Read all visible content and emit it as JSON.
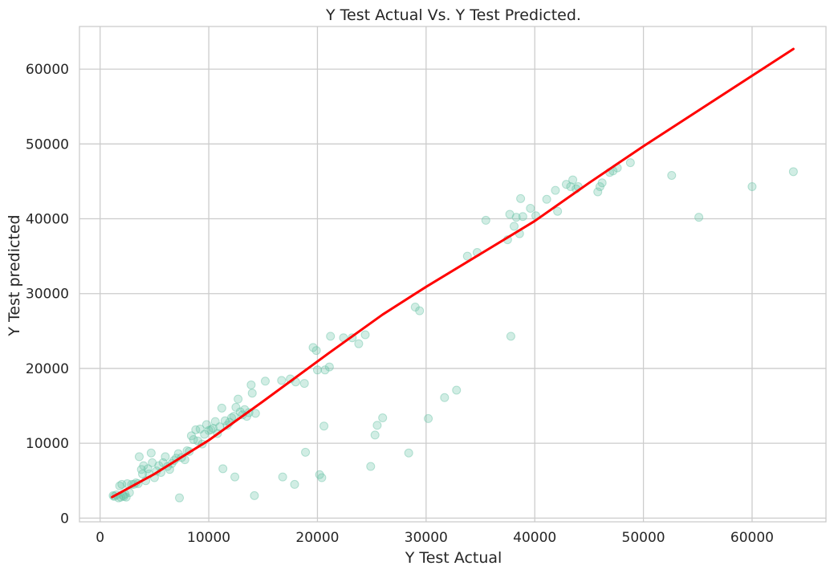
{
  "chart_data": {
    "type": "scatter",
    "title": "Y Test Actual Vs. Y Test Predicted.",
    "xlabel": "Y Test Actual",
    "ylabel": "Y Test predicted",
    "xlim": [
      -1900,
      66800
    ],
    "ylim": [
      -500,
      65700
    ],
    "xticks": [
      0,
      10000,
      20000,
      30000,
      40000,
      50000,
      60000
    ],
    "yticks": [
      0,
      10000,
      20000,
      30000,
      40000,
      50000,
      60000
    ],
    "xtick_labels": [
      "0",
      "10000",
      "20000",
      "30000",
      "40000",
      "50000",
      "60000"
    ],
    "ytick_labels": [
      "0",
      "10000",
      "20000",
      "30000",
      "40000",
      "50000",
      "60000"
    ],
    "grid": true,
    "colors": {
      "points": "#66c2a5",
      "fit_line": "#ff0000",
      "grid": "#cccccc",
      "text": "#262626"
    },
    "series": [
      {
        "kind": "scatter",
        "points": [
          [
            1200,
            3000
          ],
          [
            1300,
            2900
          ],
          [
            1500,
            3100
          ],
          [
            1700,
            2700
          ],
          [
            1800,
            4300
          ],
          [
            1900,
            2800
          ],
          [
            2000,
            4500
          ],
          [
            2100,
            3000
          ],
          [
            2200,
            2900
          ],
          [
            2300,
            3200
          ],
          [
            2400,
            2800
          ],
          [
            2500,
            4600
          ],
          [
            2700,
            3400
          ],
          [
            2900,
            4500
          ],
          [
            3100,
            4500
          ],
          [
            3300,
            4700
          ],
          [
            3500,
            4600
          ],
          [
            3600,
            8200
          ],
          [
            3800,
            6500
          ],
          [
            3900,
            5900
          ],
          [
            4000,
            7000
          ],
          [
            4200,
            5000
          ],
          [
            4400,
            6600
          ],
          [
            4500,
            5900
          ],
          [
            4700,
            8700
          ],
          [
            4800,
            7400
          ],
          [
            5000,
            5400
          ],
          [
            5200,
            6300
          ],
          [
            5400,
            7000
          ],
          [
            5600,
            6100
          ],
          [
            5800,
            7400
          ],
          [
            6000,
            8200
          ],
          [
            6200,
            6900
          ],
          [
            6400,
            6500
          ],
          [
            6600,
            7300
          ],
          [
            6800,
            7700
          ],
          [
            7000,
            8000
          ],
          [
            7200,
            8600
          ],
          [
            7300,
            2700
          ],
          [
            7500,
            8100
          ],
          [
            7800,
            7800
          ],
          [
            8000,
            9000
          ],
          [
            8200,
            8900
          ],
          [
            8400,
            11000
          ],
          [
            8600,
            10500
          ],
          [
            8800,
            11800
          ],
          [
            9000,
            10300
          ],
          [
            9200,
            11900
          ],
          [
            9400,
            9900
          ],
          [
            9600,
            11200
          ],
          [
            9800,
            12500
          ],
          [
            10000,
            11700
          ],
          [
            10200,
            11800
          ],
          [
            10400,
            12000
          ],
          [
            10600,
            12900
          ],
          [
            10800,
            11300
          ],
          [
            11000,
            12200
          ],
          [
            11200,
            14700
          ],
          [
            11300,
            6600
          ],
          [
            11500,
            13000
          ],
          [
            11700,
            12400
          ],
          [
            11900,
            12800
          ],
          [
            12100,
            13400
          ],
          [
            12300,
            13600
          ],
          [
            12400,
            5500
          ],
          [
            12500,
            14800
          ],
          [
            12700,
            15900
          ],
          [
            12900,
            14200
          ],
          [
            13100,
            13800
          ],
          [
            13300,
            14500
          ],
          [
            13500,
            13600
          ],
          [
            13700,
            14100
          ],
          [
            13900,
            17800
          ],
          [
            14000,
            16700
          ],
          [
            14200,
            3000
          ],
          [
            14300,
            14000
          ],
          [
            15200,
            18300
          ],
          [
            16700,
            18400
          ],
          [
            16800,
            5500
          ],
          [
            17500,
            18600
          ],
          [
            17900,
            4500
          ],
          [
            18000,
            18200
          ],
          [
            18800,
            18000
          ],
          [
            18900,
            8800
          ],
          [
            19600,
            22800
          ],
          [
            19900,
            22400
          ],
          [
            20000,
            19800
          ],
          [
            20200,
            5800
          ],
          [
            20400,
            5400
          ],
          [
            20600,
            12300
          ],
          [
            20700,
            19800
          ],
          [
            21100,
            20200
          ],
          [
            21200,
            24300
          ],
          [
            22400,
            24100
          ],
          [
            23200,
            24100
          ],
          [
            23800,
            23300
          ],
          [
            24400,
            24500
          ],
          [
            24900,
            6900
          ],
          [
            25300,
            11100
          ],
          [
            25500,
            12400
          ],
          [
            26000,
            13400
          ],
          [
            28400,
            8700
          ],
          [
            29000,
            28200
          ],
          [
            29400,
            27700
          ],
          [
            30200,
            13300
          ],
          [
            31700,
            16100
          ],
          [
            32800,
            17100
          ],
          [
            33800,
            35000
          ],
          [
            34700,
            35500
          ],
          [
            35500,
            39800
          ],
          [
            37500,
            37200
          ],
          [
            37700,
            40600
          ],
          [
            37800,
            24300
          ],
          [
            38100,
            39000
          ],
          [
            38300,
            40200
          ],
          [
            38600,
            38000
          ],
          [
            38700,
            42700
          ],
          [
            38900,
            40300
          ],
          [
            39600,
            41400
          ],
          [
            40100,
            40400
          ],
          [
            41100,
            42600
          ],
          [
            41900,
            43800
          ],
          [
            42100,
            41000
          ],
          [
            42900,
            44600
          ],
          [
            43300,
            44300
          ],
          [
            43500,
            45200
          ],
          [
            43800,
            44000
          ],
          [
            44000,
            44300
          ],
          [
            45800,
            43600
          ],
          [
            46000,
            44300
          ],
          [
            46200,
            44800
          ],
          [
            46900,
            46200
          ],
          [
            47200,
            46400
          ],
          [
            47600,
            46800
          ],
          [
            48800,
            47500
          ],
          [
            52600,
            45800
          ],
          [
            55100,
            40200
          ],
          [
            60000,
            44300
          ],
          [
            63800,
            46300
          ]
        ]
      },
      {
        "kind": "line",
        "points": [
          [
            1100,
            2800
          ],
          [
            5000,
            5900
          ],
          [
            10000,
            10400
          ],
          [
            15000,
            15600
          ],
          [
            21000,
            22000
          ],
          [
            26000,
            27200
          ],
          [
            30000,
            30900
          ],
          [
            40000,
            39700
          ],
          [
            45000,
            44800
          ],
          [
            50000,
            49700
          ],
          [
            63800,
            62700
          ]
        ]
      }
    ]
  }
}
